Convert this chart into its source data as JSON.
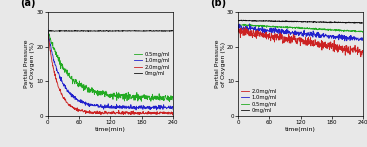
{
  "panel_a": {
    "title": "(a)",
    "xlabel": "time(min)",
    "ylabel": "Partial Pressure\nof Oxygen (%)",
    "xlim": [
      0,
      240
    ],
    "ylim": [
      0,
      30
    ],
    "yticks": [
      0,
      10,
      20,
      30
    ],
    "xticks": [
      0,
      60,
      120,
      180,
      240
    ],
    "legend_order": [
      "0.5mg/ml",
      "1.0mg/ml",
      "2.0mg/ml",
      "0mg/ml"
    ],
    "lines": [
      {
        "label": "0mg/ml",
        "color": "#111111",
        "start": 24.5,
        "end": 24.5,
        "drop_tau": 999,
        "noise": 0.05
      },
      {
        "label": "0.5mg/ml",
        "color": "#22aa22",
        "start": 24.5,
        "end": 5.2,
        "drop_tau": 38,
        "noise": 0.45
      },
      {
        "label": "1.0mg/ml",
        "color": "#2222cc",
        "start": 24.5,
        "end": 2.5,
        "drop_tau": 25,
        "noise": 0.28
      },
      {
        "label": "2.0mg/ml",
        "color": "#cc2222",
        "start": 24.5,
        "end": 0.9,
        "drop_tau": 18,
        "noise": 0.22
      }
    ]
  },
  "panel_b": {
    "title": "(b)",
    "xlabel": "time(min)",
    "ylabel": "Partial Pressure\nof Oxygen (%)",
    "xlim": [
      0,
      240
    ],
    "ylim": [
      0,
      30
    ],
    "yticks": [
      0,
      10,
      20,
      30
    ],
    "xticks": [
      0,
      60,
      120,
      180,
      240
    ],
    "legend_order": [
      "2.0mg/ml",
      "1.0mg/ml",
      "0.5mg/ml",
      "0mg/ml"
    ],
    "lines": [
      {
        "label": "0mg/ml",
        "color": "#111111",
        "start": 27.5,
        "end": 26.8,
        "drop_tau": 9999,
        "noise": 0.07
      },
      {
        "label": "0.5mg/ml",
        "color": "#22aa22",
        "start": 26.3,
        "end": 24.3,
        "drop_tau": 9999,
        "noise": 0.12
      },
      {
        "label": "1.0mg/ml",
        "color": "#2222cc",
        "start": 25.5,
        "end": 22.0,
        "drop_tau": 9999,
        "noise": 0.38
      },
      {
        "label": "2.0mg/ml",
        "color": "#cc2222",
        "start": 24.5,
        "end": 18.5,
        "drop_tau": 9999,
        "noise": 0.65
      }
    ]
  },
  "fig_bgcolor": "#e8e8e8",
  "axes_bgcolor": "#e8e8e8",
  "linewidth": 0.6
}
